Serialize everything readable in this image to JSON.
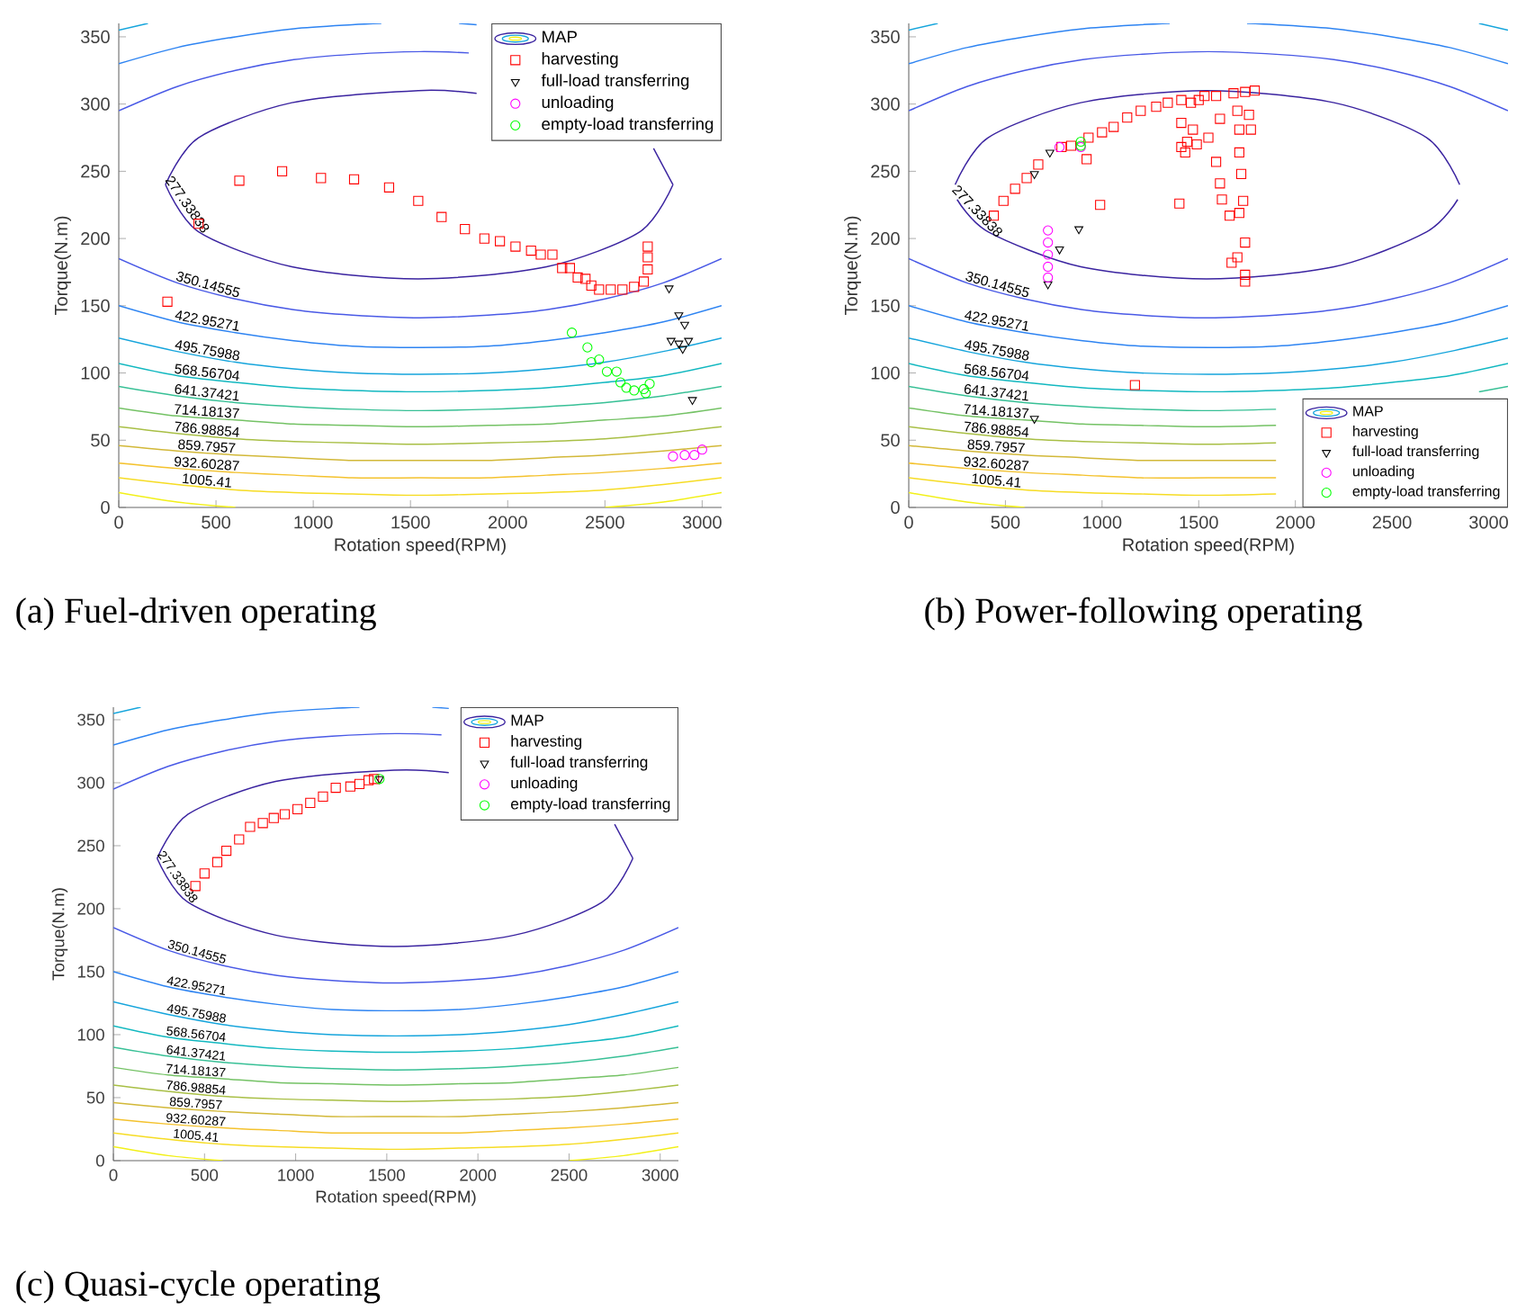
{
  "chart_data": [
    {
      "type": "scatter",
      "title": "(a) Fuel-driven operating",
      "xlabel": "Rotation speed(RPM)",
      "ylabel": "Torque(N.m)",
      "legend_title": "MAP",
      "legend": "top right",
      "xlim": [
        0,
        3100
      ],
      "ylim": [
        0,
        360
      ],
      "xticks": [
        0,
        500,
        1000,
        1500,
        2000,
        2500,
        3000
      ],
      "yticks": [
        0,
        50,
        100,
        150,
        200,
        250,
        300,
        350
      ],
      "series": [
        {
          "type": "line",
          "color": "#3b24a0",
          "x": [
            240,
            410,
            890,
            1540,
            1840
          ],
          "values": [
            240,
            275,
            301,
            310,
            308
          ]
        },
        {
          "type": "line",
          "color": "#3b24a0",
          "x": [
            2750,
            2850
          ],
          "values": [
            267,
            240
          ]
        },
        {
          "type": "line",
          "name": "277.33838",
          "color": "#3b24a0",
          "x": [
            240,
            410,
            890,
            1540,
            2200,
            2680,
            2850
          ],
          "values": [
            240,
            205,
            179,
            170,
            179,
            205,
            240
          ]
        },
        {
          "type": "line",
          "color": "#4a5ae6",
          "x": [
            0,
            300,
            600,
            900,
            1200,
            1550,
            1800
          ],
          "values": [
            295,
            313,
            325,
            333,
            337,
            339,
            338
          ]
        },
        {
          "type": "line",
          "name": "350.14555",
          "color": "#4a5ae6",
          "x": [
            0,
            300,
            600,
            900,
            1200,
            1550,
            1900,
            2200,
            2500,
            2800,
            3100
          ],
          "values": [
            185,
            167,
            155,
            147,
            143,
            141,
            143,
            147,
            155,
            167,
            185
          ]
        },
        {
          "type": "line",
          "color": "#2e84f2",
          "x": [
            0,
            300,
            600,
            900,
            1200,
            1350
          ],
          "values": [
            330,
            342,
            350,
            356,
            359,
            360
          ]
        },
        {
          "type": "line",
          "color": "#2e84f2",
          "x": [
            1750,
            1840
          ],
          "values": [
            360,
            359
          ]
        },
        {
          "type": "line",
          "name": "422.95271",
          "color": "#2e84f2",
          "x": [
            0,
            300,
            600,
            900,
            1200,
            1550,
            1900,
            2200,
            2500,
            2800,
            3100
          ],
          "values": [
            150,
            138,
            130,
            124,
            120,
            119,
            120,
            124,
            130,
            138,
            150
          ]
        },
        {
          "type": "line",
          "color": "#16a5dc",
          "x": [
            0,
            150
          ],
          "values": [
            355,
            360
          ]
        },
        {
          "type": "line",
          "name": "495.75988",
          "color": "#16a5dc",
          "x": [
            0,
            300,
            600,
            900,
            1200,
            1550,
            1900,
            2200,
            2500,
            2800,
            3100
          ],
          "values": [
            126,
            116,
            108,
            103,
            100,
            99,
            100,
            103,
            108,
            116,
            126
          ]
        },
        {
          "type": "line",
          "name": "568.56704",
          "color": "#12b8c0",
          "x": [
            0,
            300,
            600,
            900,
            1200,
            1550,
            1900,
            2200,
            2500,
            2800,
            3100
          ],
          "values": [
            107,
            98,
            93,
            89,
            87,
            86,
            87,
            89,
            93,
            98,
            107
          ]
        },
        {
          "type": "line",
          "name": "641.37421",
          "color": "#38c096",
          "x": [
            0,
            300,
            600,
            900,
            1200,
            1550,
            1900,
            2200,
            2500,
            2800,
            3100
          ],
          "values": [
            90,
            83,
            78,
            75,
            73,
            72,
            73,
            75,
            78,
            83,
            90
          ]
        },
        {
          "type": "line",
          "name": "714.18137",
          "color": "#74c265",
          "x": [
            0,
            300,
            600,
            900,
            1200,
            1550,
            1900,
            2200,
            2500,
            2800,
            3100
          ],
          "values": [
            74,
            68,
            65,
            62,
            61,
            60,
            61,
            62,
            65,
            68,
            74
          ]
        },
        {
          "type": "line",
          "name": "786.98854",
          "color": "#a8bf45",
          "x": [
            0,
            300,
            600,
            900,
            1200,
            1550,
            1900,
            2200,
            2500,
            2800,
            3100
          ],
          "values": [
            60,
            55,
            51,
            49,
            48,
            47,
            48,
            49,
            51,
            55,
            60
          ]
        },
        {
          "type": "line",
          "name": "859.7957",
          "color": "#d2b838",
          "x": [
            0,
            300,
            600,
            900,
            1200,
            1550,
            1900,
            2200,
            2500,
            2800,
            3100
          ],
          "values": [
            46,
            42,
            39,
            37,
            35,
            35,
            35,
            37,
            39,
            42,
            46
          ]
        },
        {
          "type": "line",
          "name": "932.60287",
          "color": "#f4c22e",
          "x": [
            0,
            300,
            600,
            900,
            1200,
            1550,
            1900,
            2200,
            2500,
            2800,
            3100
          ],
          "values": [
            33,
            29,
            26,
            24,
            22,
            22,
            22,
            24,
            26,
            29,
            33
          ]
        },
        {
          "type": "line",
          "name": "1005.41",
          "color": "#f6dc24",
          "x": [
            0,
            300,
            600,
            900,
            1200,
            1550,
            1900,
            2200,
            2500,
            2800,
            3100
          ],
          "values": [
            22,
            17,
            13,
            11,
            10,
            9,
            10,
            11,
            13,
            17,
            22
          ]
        },
        {
          "type": "line",
          "color": "#f2f018",
          "x": [
            0,
            300,
            600
          ],
          "values": [
            11,
            4,
            0
          ]
        },
        {
          "type": "line",
          "color": "#f2f018",
          "x": [
            2500,
            2800,
            3100
          ],
          "values": [
            0,
            4,
            11
          ]
        },
        {
          "type": "scatter",
          "name": "harvesting",
          "color": "#ff0000",
          "marker": "square",
          "x": [
            250,
            410,
            620,
            840,
            1040,
            1210,
            1390,
            1540,
            1660,
            1780,
            1880,
            1960,
            2040,
            2120,
            2170,
            2230,
            2280,
            2320,
            2360,
            2400,
            2430,
            2470,
            2530,
            2590,
            2650,
            2700,
            2720,
            2720,
            2720
          ],
          "values": [
            153,
            211,
            243,
            250,
            245,
            244,
            238,
            228,
            216,
            207,
            200,
            198,
            194,
            191,
            188,
            188,
            178,
            178,
            171,
            170,
            165,
            162,
            162,
            162,
            164,
            168,
            177,
            186,
            194
          ]
        },
        {
          "type": "scatter",
          "name": "full-load transferring",
          "color": "#000000",
          "marker": "triangle",
          "x": [
            2830,
            2880,
            2910,
            2840,
            2880,
            2930,
            2900,
            2950
          ],
          "values": [
            163,
            143,
            136,
            124,
            122,
            124,
            118,
            80
          ]
        },
        {
          "type": "scatter",
          "name": "unloading",
          "color": "#ff00ff",
          "marker": "circle",
          "x": [
            2850,
            2910,
            2960,
            3000
          ],
          "values": [
            38,
            39,
            39,
            43
          ]
        },
        {
          "type": "scatter",
          "name": "empty-load transferring",
          "color": "#00ff00",
          "marker": "circle",
          "x": [
            2330,
            2410,
            2430,
            2470,
            2510,
            2560,
            2580,
            2610,
            2650,
            2700,
            2730,
            2710
          ],
          "values": [
            130,
            119,
            108,
            110,
            101,
            101,
            93,
            89,
            87,
            88,
            92,
            85
          ]
        }
      ]
    },
    {
      "type": "scatter",
      "title": "(b) Power-following operating",
      "xlabel": "Rotation speed(RPM)",
      "ylabel": "Torque(N.m)",
      "legend_title": "MAP",
      "legend": "bottom right",
      "xlim": [
        0,
        3100
      ],
      "ylim": [
        0,
        360
      ],
      "xticks": [
        0,
        500,
        1000,
        1500,
        2000,
        2500,
        3000
      ],
      "yticks": [
        0,
        50,
        100,
        150,
        200,
        250,
        300,
        350
      ],
      "series": [
        {
          "type": "line",
          "color": "#3b24a0",
          "x": [
            240,
            410,
            890,
            1540,
            2200,
            2680,
            2850
          ],
          "values": [
            240,
            275,
            301,
            310,
            301,
            275,
            240
          ]
        },
        {
          "type": "line",
          "name": "277.33838",
          "color": "#3b24a0",
          "x": [
            250,
            410,
            890,
            1540,
            2200,
            2680,
            2840
          ],
          "values": [
            229,
            205,
            179,
            170,
            179,
            205,
            229
          ]
        },
        {
          "type": "line",
          "color": "#4a5ae6",
          "x": [
            0,
            300,
            600,
            900,
            1200,
            1550,
            1900,
            2200,
            2500,
            2800,
            3100
          ],
          "values": [
            295,
            313,
            325,
            333,
            337,
            339,
            337,
            333,
            325,
            313,
            295
          ]
        },
        {
          "type": "line",
          "name": "350.14555",
          "color": "#4a5ae6",
          "x": [
            0,
            300,
            600,
            900,
            1200,
            1550,
            1900,
            2200,
            2500,
            2800,
            3100
          ],
          "values": [
            185,
            167,
            155,
            147,
            143,
            141,
            143,
            147,
            155,
            167,
            185
          ]
        },
        {
          "type": "line",
          "color": "#2e84f2",
          "x": [
            0,
            300,
            600,
            900,
            1200,
            1350
          ],
          "values": [
            330,
            342,
            350,
            356,
            359,
            360
          ]
        },
        {
          "type": "line",
          "color": "#2e84f2",
          "x": [
            1750,
            1900,
            2200,
            2500,
            2800,
            3100
          ],
          "values": [
            360,
            359,
            356,
            350,
            342,
            330
          ]
        },
        {
          "type": "line",
          "name": "422.95271",
          "color": "#2e84f2",
          "x": [
            0,
            300,
            600,
            900,
            1200,
            1550,
            1900,
            2200,
            2500,
            2800,
            3100
          ],
          "values": [
            150,
            138,
            130,
            124,
            120,
            119,
            120,
            124,
            130,
            138,
            150
          ]
        },
        {
          "type": "line",
          "color": "#16a5dc",
          "x": [
            0,
            150
          ],
          "values": [
            355,
            360
          ]
        },
        {
          "type": "line",
          "color": "#16a5dc",
          "x": [
            2950,
            3100
          ],
          "values": [
            360,
            355
          ]
        },
        {
          "type": "line",
          "name": "495.75988",
          "color": "#16a5dc",
          "x": [
            0,
            300,
            600,
            900,
            1200,
            1550,
            1900,
            2200,
            2500,
            2800,
            3100
          ],
          "values": [
            126,
            116,
            108,
            103,
            100,
            99,
            100,
            103,
            108,
            116,
            126
          ]
        },
        {
          "type": "line",
          "name": "568.56704",
          "color": "#12b8c0",
          "x": [
            0,
            300,
            600,
            900,
            1200,
            1550,
            1900,
            2200,
            2500,
            2800,
            3100
          ],
          "values": [
            107,
            98,
            93,
            89,
            87,
            86,
            87,
            89,
            93,
            98,
            107
          ]
        },
        {
          "type": "line",
          "name": "641.37421",
          "color": "#38c096",
          "x": [
            0,
            300,
            600,
            900,
            1200,
            1550,
            1900
          ],
          "values": [
            90,
            83,
            78,
            75,
            73,
            72,
            73
          ]
        },
        {
          "type": "line",
          "color": "#38c096",
          "x": [
            2950,
            3100
          ],
          "values": [
            86,
            90
          ]
        },
        {
          "type": "line",
          "name": "714.18137",
          "color": "#74c265",
          "x": [
            0,
            300,
            600,
            900,
            1200,
            1550,
            1900
          ],
          "values": [
            74,
            68,
            65,
            62,
            61,
            60,
            61
          ]
        },
        {
          "type": "line",
          "name": "786.98854",
          "color": "#a8bf45",
          "x": [
            0,
            300,
            600,
            900,
            1200,
            1550,
            1900
          ],
          "values": [
            60,
            55,
            51,
            49,
            48,
            47,
            48
          ]
        },
        {
          "type": "line",
          "name": "859.7957",
          "color": "#d2b838",
          "x": [
            0,
            300,
            600,
            900,
            1200,
            1550,
            1900
          ],
          "values": [
            46,
            42,
            39,
            37,
            35,
            35,
            35
          ]
        },
        {
          "type": "line",
          "name": "932.60287",
          "color": "#f4c22e",
          "x": [
            0,
            300,
            600,
            900,
            1200,
            1550,
            1900
          ],
          "values": [
            33,
            29,
            26,
            24,
            22,
            22,
            22
          ]
        },
        {
          "type": "line",
          "name": "1005.41",
          "color": "#f6dc24",
          "x": [
            0,
            300,
            600,
            900,
            1200,
            1550,
            1900
          ],
          "values": [
            22,
            17,
            13,
            11,
            10,
            9,
            10
          ]
        },
        {
          "type": "line",
          "color": "#f2f018",
          "x": [
            0,
            300,
            600
          ],
          "values": [
            11,
            4,
            0
          ]
        },
        {
          "type": "scatter",
          "name": "harvesting",
          "color": "#ff0000",
          "marker": "square",
          "x": [
            440,
            490,
            550,
            610,
            670,
            790,
            840,
            930,
            1000,
            1060,
            1130,
            1200,
            1280,
            1340,
            1410,
            1460,
            1500,
            1530,
            1410,
            1470,
            1410,
            1440,
            1490,
            1430,
            1590,
            1680,
            1740,
            1790,
            1700,
            1760,
            1710,
            1770,
            990,
            1400,
            920,
            1170,
            1590,
            1610,
            1620,
            1660,
            1670,
            1700,
            1740,
            1740,
            1740,
            1710,
            1730,
            1720,
            1710,
            1550,
            1610
          ],
          "values": [
            217,
            228,
            237,
            245,
            255,
            268,
            269,
            275,
            279,
            283,
            290,
            295,
            298,
            301,
            303,
            301,
            303,
            306,
            286,
            281,
            268,
            272,
            270,
            264,
            306,
            308,
            309,
            310,
            295,
            292,
            281,
            281,
            225,
            226,
            259,
            91,
            257,
            241,
            229,
            217,
            182,
            186,
            173,
            168,
            197,
            219,
            228,
            248,
            264,
            275,
            289
          ]
        },
        {
          "type": "scatter",
          "name": "full-load transferring",
          "color": "#000000",
          "marker": "triangle",
          "x": [
            730,
            650,
            880,
            780,
            720,
            650
          ],
          "values": [
            264,
            248,
            207,
            192,
            166,
            66
          ]
        },
        {
          "type": "scatter",
          "name": "unloading",
          "color": "#ff00ff",
          "marker": "circle",
          "x": [
            720,
            720,
            720,
            720,
            720,
            780,
            890
          ],
          "values": [
            206,
            197,
            188,
            179,
            171,
            268,
            268
          ]
        },
        {
          "type": "scatter",
          "name": "empty-load transferring",
          "color": "#00ff00",
          "marker": "circle",
          "x": [
            890,
            890
          ],
          "values": [
            269,
            272
          ]
        }
      ]
    },
    {
      "type": "scatter",
      "title": "(c) Quasi-cycle operating",
      "xlabel": "Rotation speed(RPM)",
      "ylabel": "Torque(N.m)",
      "legend_title": "MAP",
      "legend": "top right",
      "xlim": [
        0,
        3100
      ],
      "ylim": [
        0,
        360
      ],
      "xticks": [
        0,
        500,
        1000,
        1500,
        2000,
        2500,
        3000
      ],
      "yticks": [
        0,
        50,
        100,
        150,
        200,
        250,
        300,
        350
      ],
      "series": [
        {
          "type": "line",
          "color": "#3b24a0",
          "x": [
            240,
            410,
            890,
            1540,
            1840
          ],
          "values": [
            240,
            275,
            301,
            310,
            308
          ]
        },
        {
          "type": "line",
          "color": "#3b24a0",
          "x": [
            2750,
            2850
          ],
          "values": [
            267,
            240
          ]
        },
        {
          "type": "line",
          "name": "277.33838",
          "color": "#3b24a0",
          "x": [
            240,
            410,
            890,
            1540,
            2200,
            2680,
            2850
          ],
          "values": [
            240,
            205,
            179,
            170,
            179,
            205,
            240
          ]
        },
        {
          "type": "line",
          "color": "#4a5ae6",
          "x": [
            0,
            300,
            600,
            900,
            1200,
            1550,
            1800
          ],
          "values": [
            295,
            313,
            325,
            333,
            337,
            339,
            338
          ]
        },
        {
          "type": "line",
          "name": "350.14555",
          "color": "#4a5ae6",
          "x": [
            0,
            300,
            600,
            900,
            1200,
            1550,
            1900,
            2200,
            2500,
            2800,
            3100
          ],
          "values": [
            185,
            167,
            155,
            147,
            143,
            141,
            143,
            147,
            155,
            167,
            185
          ]
        },
        {
          "type": "line",
          "color": "#2e84f2",
          "x": [
            0,
            300,
            600,
            900,
            1200,
            1350
          ],
          "values": [
            330,
            342,
            350,
            356,
            359,
            360
          ]
        },
        {
          "type": "line",
          "color": "#2e84f2",
          "x": [
            1750,
            1840
          ],
          "values": [
            360,
            359
          ]
        },
        {
          "type": "line",
          "name": "422.95271",
          "color": "#2e84f2",
          "x": [
            0,
            300,
            600,
            900,
            1200,
            1550,
            1900,
            2200,
            2500,
            2800,
            3100
          ],
          "values": [
            150,
            138,
            130,
            124,
            120,
            119,
            120,
            124,
            130,
            138,
            150
          ]
        },
        {
          "type": "line",
          "color": "#16a5dc",
          "x": [
            0,
            150
          ],
          "values": [
            355,
            360
          ]
        },
        {
          "type": "line",
          "name": "495.75988",
          "color": "#16a5dc",
          "x": [
            0,
            300,
            600,
            900,
            1200,
            1550,
            1900,
            2200,
            2500,
            2800,
            3100
          ],
          "values": [
            126,
            116,
            108,
            103,
            100,
            99,
            100,
            103,
            108,
            116,
            126
          ]
        },
        {
          "type": "line",
          "name": "568.56704",
          "color": "#12b8c0",
          "x": [
            0,
            300,
            600,
            900,
            1200,
            1550,
            1900,
            2200,
            2500,
            2800,
            3100
          ],
          "values": [
            107,
            98,
            93,
            89,
            87,
            86,
            87,
            89,
            93,
            98,
            107
          ]
        },
        {
          "type": "line",
          "name": "641.37421",
          "color": "#38c096",
          "x": [
            0,
            300,
            600,
            900,
            1200,
            1550,
            1900,
            2200,
            2500,
            2800,
            3100
          ],
          "values": [
            90,
            83,
            78,
            75,
            73,
            72,
            73,
            75,
            78,
            83,
            90
          ]
        },
        {
          "type": "line",
          "name": "714.18137",
          "color": "#74c265",
          "x": [
            0,
            300,
            600,
            900,
            1200,
            1550,
            1900,
            2200,
            2500,
            2800,
            3100
          ],
          "values": [
            74,
            68,
            65,
            62,
            61,
            60,
            61,
            62,
            65,
            68,
            74
          ]
        },
        {
          "type": "line",
          "name": "786.98854",
          "color": "#a8bf45",
          "x": [
            0,
            300,
            600,
            900,
            1200,
            1550,
            1900,
            2200,
            2500,
            2800,
            3100
          ],
          "values": [
            60,
            55,
            51,
            49,
            48,
            47,
            48,
            49,
            51,
            55,
            60
          ]
        },
        {
          "type": "line",
          "name": "859.7957",
          "color": "#d2b838",
          "x": [
            0,
            300,
            600,
            900,
            1200,
            1550,
            1900,
            2200,
            2500,
            2800,
            3100
          ],
          "values": [
            46,
            42,
            39,
            37,
            35,
            35,
            35,
            37,
            39,
            42,
            46
          ]
        },
        {
          "type": "line",
          "name": "932.60287",
          "color": "#f4c22e",
          "x": [
            0,
            300,
            600,
            900,
            1200,
            1550,
            1900,
            2200,
            2500,
            2800,
            3100
          ],
          "values": [
            33,
            29,
            26,
            24,
            22,
            22,
            22,
            24,
            26,
            29,
            33
          ]
        },
        {
          "type": "line",
          "name": "1005.41",
          "color": "#f6dc24",
          "x": [
            0,
            300,
            600,
            900,
            1200,
            1550,
            1900,
            2200,
            2500,
            2800,
            3100
          ],
          "values": [
            22,
            17,
            13,
            11,
            10,
            9,
            10,
            11,
            13,
            17,
            22
          ]
        },
        {
          "type": "line",
          "color": "#f2f018",
          "x": [
            0,
            300,
            600
          ],
          "values": [
            11,
            4,
            0
          ]
        },
        {
          "type": "line",
          "color": "#f2f018",
          "x": [
            2500,
            2800,
            3100
          ],
          "values": [
            0,
            4,
            11
          ]
        },
        {
          "type": "scatter",
          "name": "harvesting",
          "color": "#ff0000",
          "marker": "square",
          "x": [
            450,
            500,
            570,
            620,
            690,
            750,
            820,
            880,
            940,
            1010,
            1080,
            1150,
            1220,
            1300,
            1350,
            1400,
            1430
          ],
          "values": [
            218,
            228,
            237,
            246,
            255,
            265,
            268,
            272,
            275,
            279,
            284,
            289,
            296,
            297,
            299,
            302,
            303
          ]
        },
        {
          "type": "scatter",
          "name": "full-load transferring",
          "color": "#000000",
          "marker": "triangle",
          "x": [
            1460
          ],
          "values": [
            303
          ]
        },
        {
          "type": "scatter",
          "name": "unloading",
          "color": "#ff00ff",
          "marker": "circle"
        },
        {
          "type": "scatter",
          "name": "empty-load transferring",
          "color": "#00ff00",
          "marker": "circle",
          "x": [
            1460
          ],
          "values": [
            303
          ]
        }
      ]
    }
  ]
}
